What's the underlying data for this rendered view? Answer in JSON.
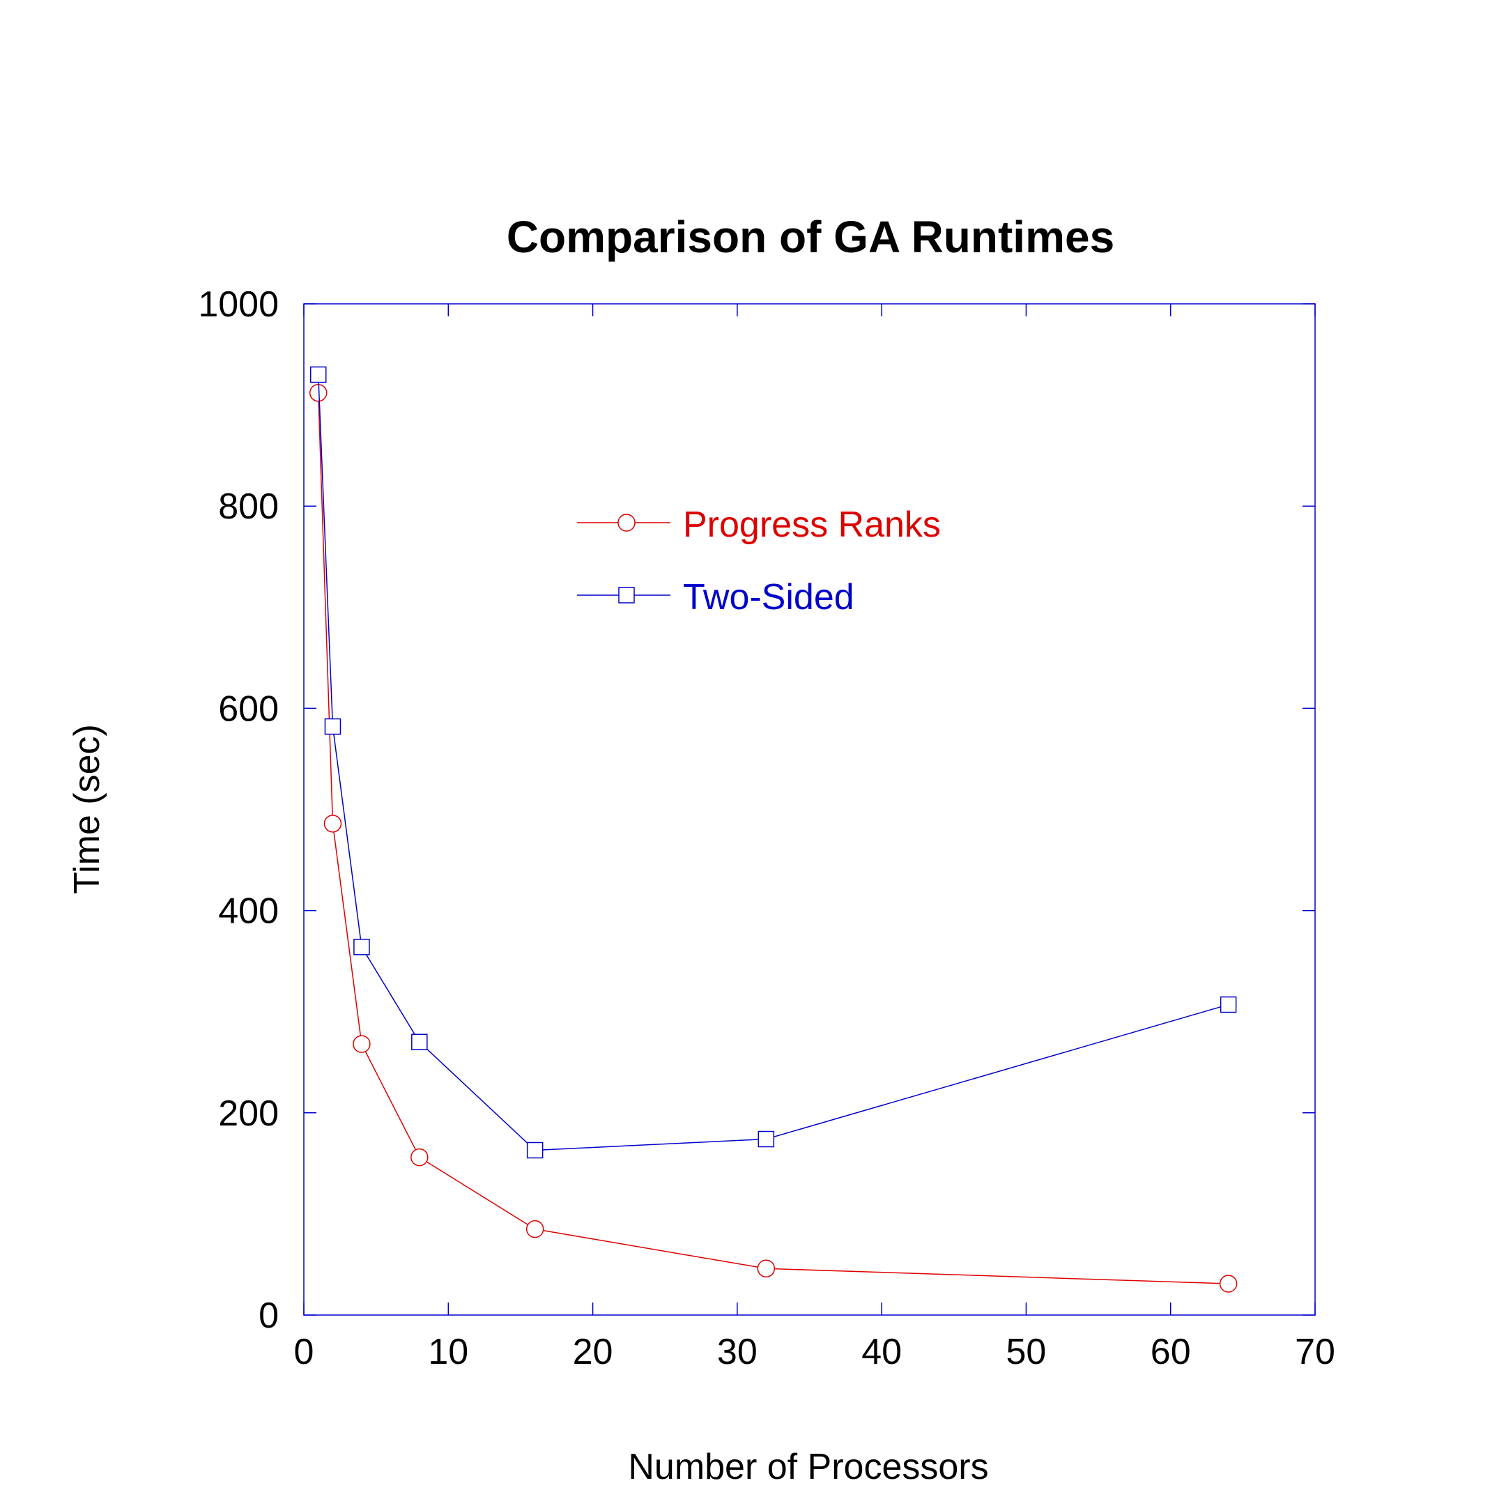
{
  "chart_data": {
    "type": "line",
    "title": "Comparison of GA Runtimes",
    "xlabel": "Number of Processors",
    "ylabel": "Time (sec)",
    "xlim": [
      0,
      70
    ],
    "ylim": [
      0,
      1000
    ],
    "x_ticks": [
      0,
      10,
      20,
      30,
      40,
      50,
      60,
      70
    ],
    "y_ticks": [
      0,
      200,
      400,
      600,
      800,
      1000
    ],
    "grid": false,
    "legend_position": "upper-center",
    "axis_color": "#0000cc",
    "series": [
      {
        "name": "Progress Ranks",
        "color": "#dd0000",
        "marker": "circle",
        "x": [
          1,
          2,
          4,
          8,
          16,
          32,
          64
        ],
        "y": [
          912,
          486,
          268,
          156,
          85,
          46,
          31
        ]
      },
      {
        "name": "Two-Sided",
        "color": "#0000cc",
        "marker": "square",
        "x": [
          1,
          2,
          4,
          8,
          16,
          32,
          64
        ],
        "y": [
          930,
          582,
          364,
          270,
          163,
          174,
          307
        ]
      }
    ]
  }
}
